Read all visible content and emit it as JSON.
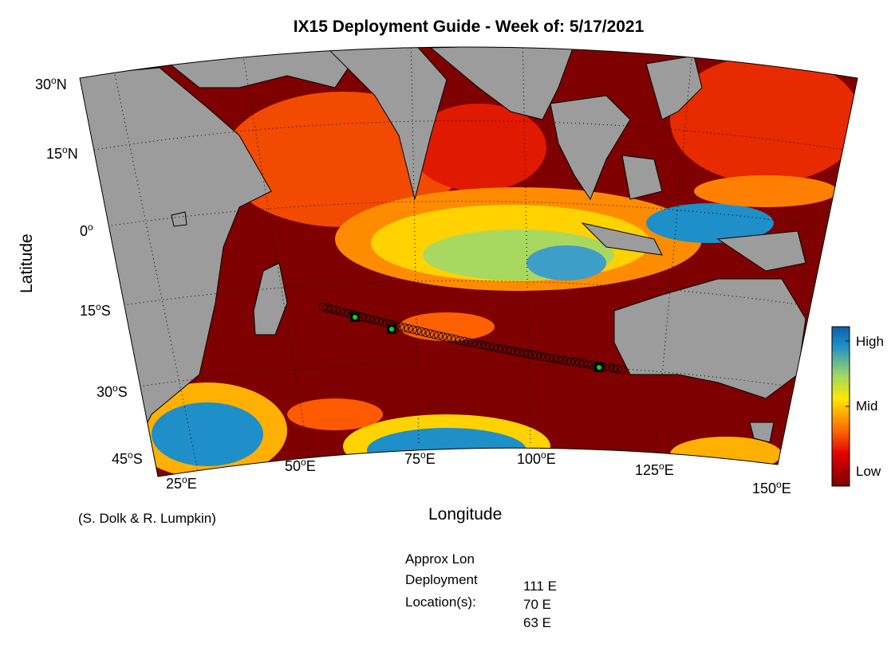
{
  "title": "IX15 Deployment Guide - Week of: 5/17/2021",
  "credit": "(S. Dolk & R. Lumpkin)",
  "axes": {
    "xlabel": "Longitude",
    "ylabel": "Latitude",
    "lat_ticks": [
      {
        "num": "30",
        "sup": "o",
        "hem": "N"
      },
      {
        "num": "15",
        "sup": "o",
        "hem": "N"
      },
      {
        "num": "0",
        "sup": "o",
        "hem": ""
      },
      {
        "num": "15",
        "sup": "o",
        "hem": "S"
      },
      {
        "num": "30",
        "sup": "o",
        "hem": "S"
      },
      {
        "num": "45",
        "sup": "o",
        "hem": "S"
      }
    ],
    "lon_ticks": [
      {
        "num": "25",
        "sup": "o",
        "hem": "E"
      },
      {
        "num": "50",
        "sup": "o",
        "hem": "E"
      },
      {
        "num": "75",
        "sup": "o",
        "hem": "E"
      },
      {
        "num": "100",
        "sup": "o",
        "hem": "E"
      },
      {
        "num": "125",
        "sup": "o",
        "hem": "E"
      },
      {
        "num": "150",
        "sup": "o",
        "hem": "E"
      }
    ]
  },
  "colorbar": {
    "labels": {
      "high": "High",
      "mid": "Mid",
      "low": "Low"
    },
    "colors": [
      "#7f0000",
      "#e00000",
      "#ff6a00",
      "#ffe800",
      "#9cd66a",
      "#1e8fc8",
      "#0d5fa6"
    ]
  },
  "land_color": "#9c9c9c",
  "deployment": {
    "label_line1": "Approx Lon",
    "label_line2": "Deployment",
    "label_line3": "Location(s):",
    "locations": [
      "111 E",
      "70 E",
      "63 E"
    ],
    "marker_color": "#00dd00"
  }
}
